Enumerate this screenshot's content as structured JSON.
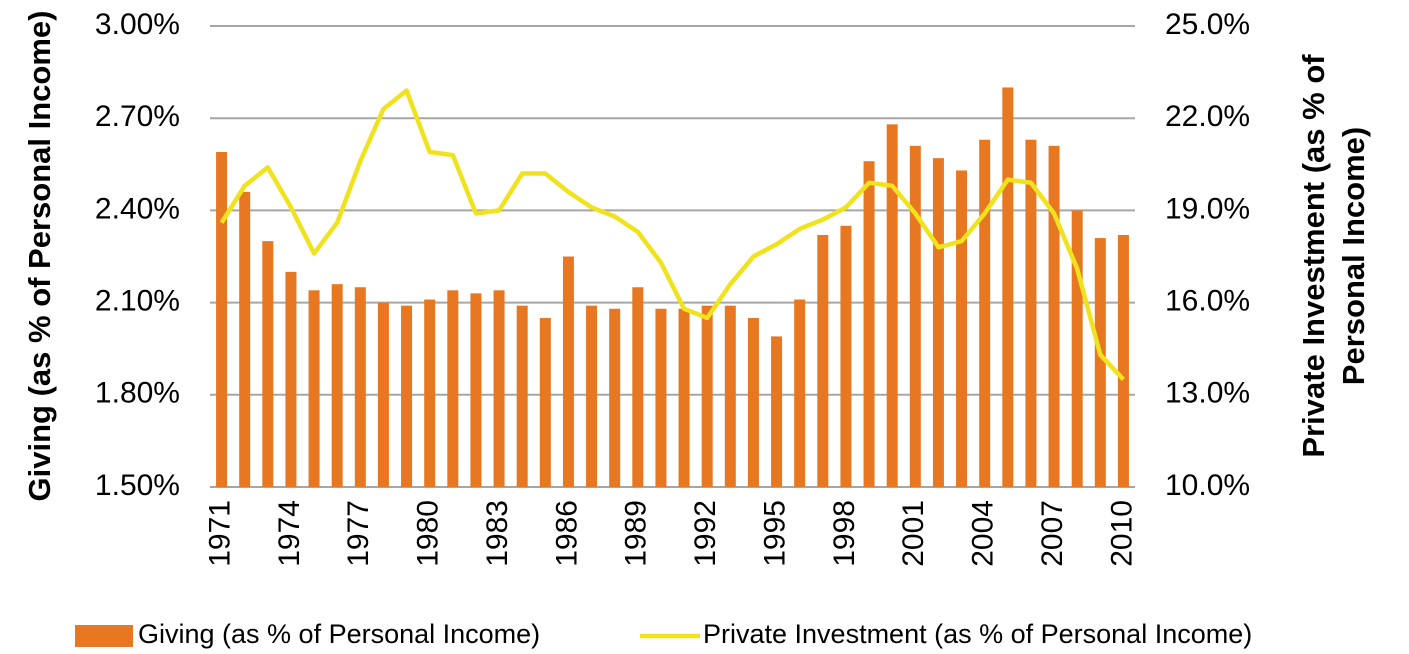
{
  "chart_data": {
    "type": "bar_line",
    "ylabel": "Giving (as % of Personal Income)",
    "y2label": [
      "Private Investment (as % of",
      "Personal Income)"
    ],
    "categories": [
      "1971",
      null,
      null,
      "1974",
      null,
      null,
      "1977",
      null,
      null,
      "1980",
      null,
      null,
      "1983",
      null,
      null,
      "1986",
      null,
      null,
      "1989",
      null,
      null,
      "1992",
      null,
      null,
      "1995",
      null,
      null,
      "1998",
      null,
      null,
      "2001",
      null,
      null,
      "2004",
      null,
      null,
      "2007",
      null,
      null,
      "2010"
    ],
    "series": [
      {
        "name": "Giving (as % of Personal Income)",
        "type": "bar",
        "color": "#e87722",
        "axis": "y",
        "values": [
          2.59,
          2.46,
          2.3,
          2.2,
          2.14,
          2.16,
          2.15,
          2.1,
          2.09,
          2.11,
          2.14,
          2.13,
          2.14,
          2.09,
          2.05,
          2.25,
          2.09,
          2.08,
          2.15,
          2.08,
          2.08,
          2.09,
          2.09,
          2.05,
          1.99,
          2.11,
          2.32,
          2.35,
          2.56,
          2.68,
          2.61,
          2.57,
          2.53,
          2.63,
          2.8,
          2.63,
          2.61,
          2.4,
          2.31,
          2.32
        ]
      },
      {
        "name": "Private Investment (as % of Personal Income)",
        "type": "line",
        "color": "#f0e21c",
        "axis": "y2",
        "values": [
          18.6,
          19.8,
          20.4,
          19.1,
          17.6,
          18.6,
          20.6,
          22.3,
          22.9,
          20.9,
          20.8,
          18.9,
          19.0,
          20.2,
          20.2,
          19.6,
          19.1,
          18.8,
          18.3,
          17.3,
          15.8,
          15.5,
          16.6,
          17.5,
          17.9,
          18.4,
          18.7,
          19.1,
          19.9,
          19.8,
          18.9,
          17.8,
          18.0,
          18.9,
          20.0,
          19.9,
          18.9,
          17.1,
          14.3,
          13.5
        ]
      }
    ],
    "ylim": [
      1.5,
      3.0
    ],
    "yticks": [
      {
        "value": 1.5,
        "label": "1.50%"
      },
      {
        "value": 1.8,
        "label": "1.80%"
      },
      {
        "value": 2.1,
        "label": "2.10%"
      },
      {
        "value": 2.4,
        "label": "2.40%"
      },
      {
        "value": 2.7,
        "label": "2.70%"
      },
      {
        "value": 3.0,
        "label": "3.00%"
      }
    ],
    "y2lim": [
      10,
      25
    ],
    "y2ticks": [
      {
        "value": 10,
        "label": "10.0%"
      },
      {
        "value": 13,
        "label": "13.0%"
      },
      {
        "value": 16,
        "label": "16.0%"
      },
      {
        "value": 19,
        "label": "19.0%"
      },
      {
        "value": 22,
        "label": "22.0%"
      },
      {
        "value": 25,
        "label": "25.0%"
      }
    ],
    "grid": true,
    "legend": "bottom"
  }
}
